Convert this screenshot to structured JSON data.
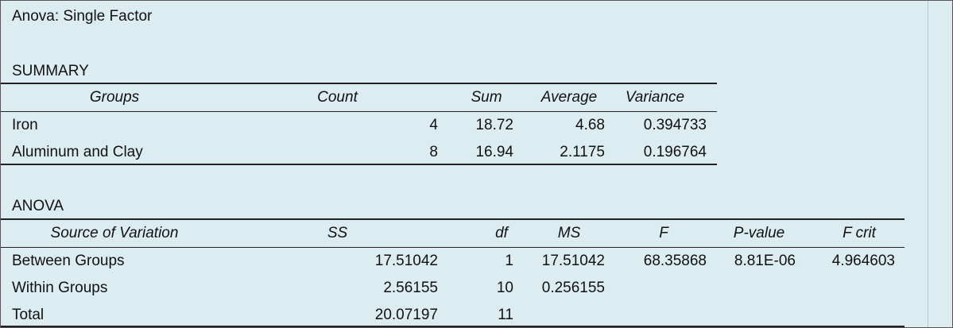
{
  "title": "Anova: Single Factor",
  "summary": {
    "label": "SUMMARY",
    "headers": [
      "Groups",
      "Count",
      "Sum",
      "Average",
      "Variance"
    ],
    "rows": [
      [
        "Iron",
        "4",
        "18.72",
        "4.68",
        "0.394733"
      ],
      [
        "Aluminum and Clay",
        "8",
        "16.94",
        "2.1175",
        "0.196764"
      ]
    ]
  },
  "anova": {
    "label": "ANOVA",
    "headers": [
      "Source of Variation",
      "SS",
      "df",
      "MS",
      "F",
      "P-value",
      "F crit"
    ],
    "rows": [
      [
        "Between Groups",
        "17.51042",
        "1",
        "17.51042",
        "68.35868",
        "8.81E-06",
        "4.964603"
      ],
      [
        "Within Groups",
        "2.56155",
        "10",
        "0.256155",
        "",
        "",
        ""
      ],
      [
        "Total",
        "20.07197",
        "11",
        "",
        "",
        "",
        ""
      ]
    ]
  }
}
